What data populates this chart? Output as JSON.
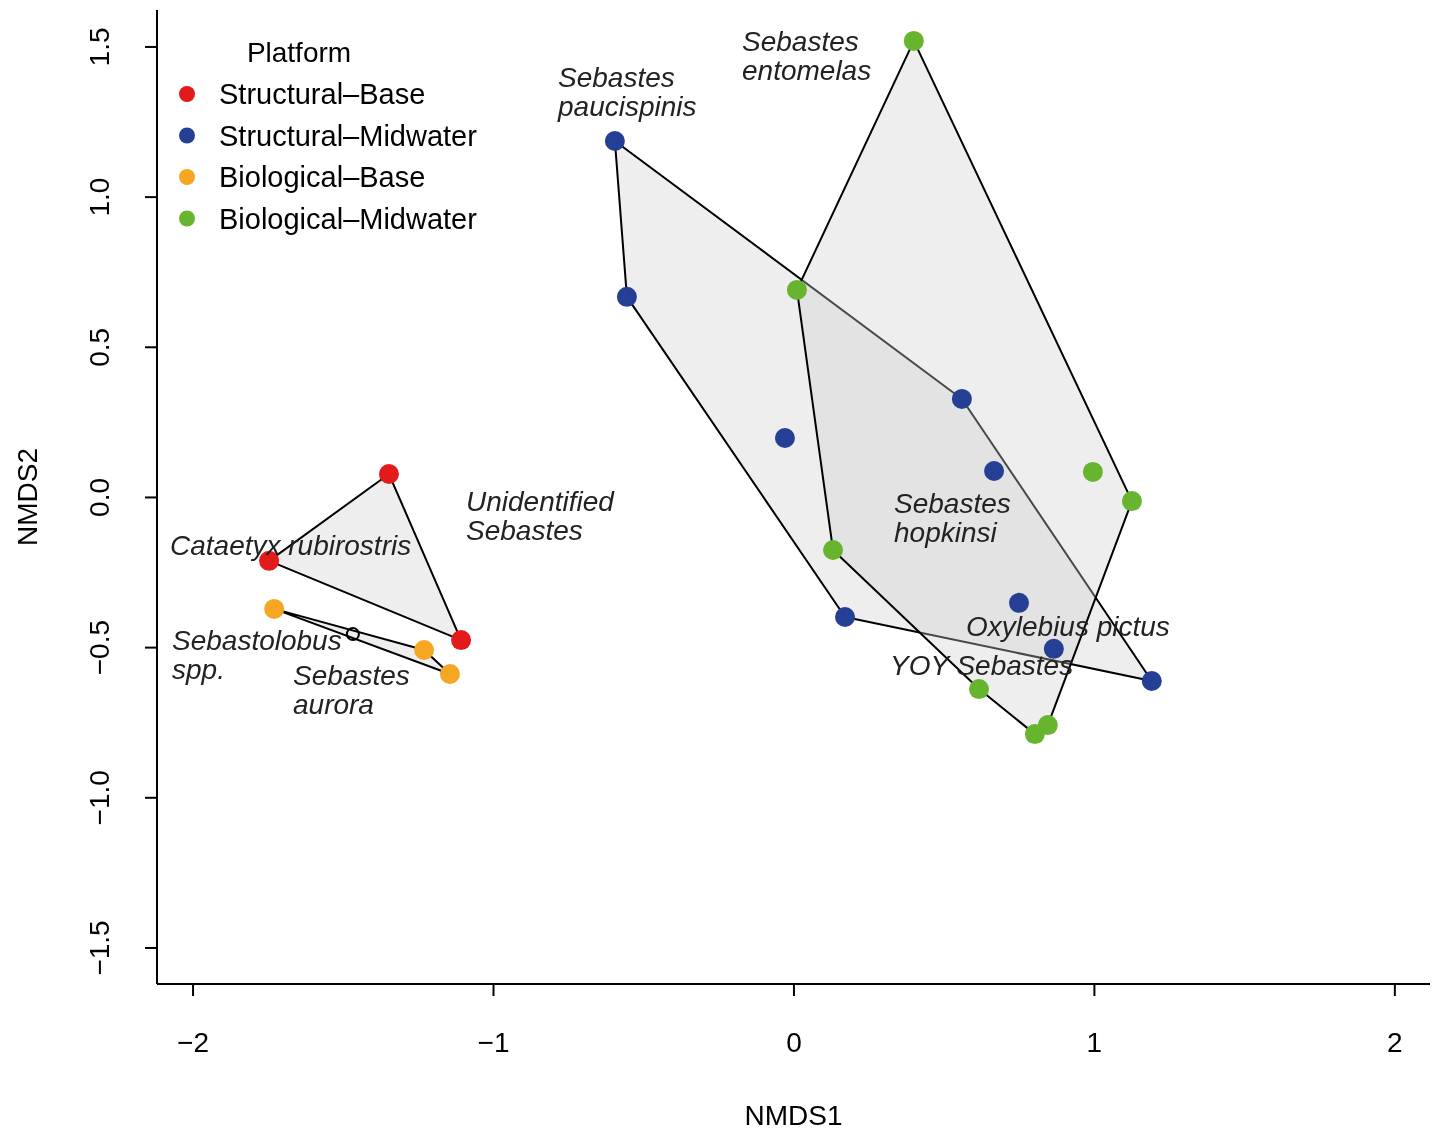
{
  "chart_data": {
    "type": "scatter",
    "xlabel": "NMDS1",
    "ylabel": "NMDS2",
    "legend_title": "Platform",
    "legend": "top left",
    "marker": "circle",
    "grid": false,
    "xlim": [
      -2.12,
      2.117
    ],
    "ylim": [
      -1.62,
      1.623
    ],
    "xticks": [
      {
        "value": -2,
        "label": "−2"
      },
      {
        "value": -1,
        "label": "−1"
      },
      0,
      1,
      2
    ],
    "yticks": [
      {
        "value": -1.5,
        "label": "−1.5"
      },
      {
        "value": -1,
        "label": "−1.0"
      },
      {
        "value": -0.5,
        "label": "−0.5"
      },
      {
        "value": 0,
        "label": "0.0"
      },
      0.5,
      {
        "value": 1,
        "label": "1.0"
      },
      1.5
    ],
    "series": [
      {
        "name": "Structural–Base",
        "color": "#e31a1c",
        "x": [
          -1.348,
          -1.747,
          -1.108
        ],
        "values": [
          0.078,
          -0.211,
          -0.475
        ]
      },
      {
        "name": "Structural–Midwater",
        "color": "#253f94",
        "x": [
          -0.596,
          -0.556,
          -0.03,
          0.559,
          0.666,
          0.749,
          0.865,
          1.191,
          0.17
        ],
        "values": [
          1.187,
          0.668,
          0.198,
          0.328,
          0.088,
          -0.351,
          -0.504,
          -0.611,
          -0.398
        ]
      },
      {
        "name": "Biological–Base",
        "color": "#f5a623",
        "x": [
          -1.73,
          -1.231,
          -1.145
        ],
        "values": [
          -0.371,
          -0.508,
          -0.588
        ]
      },
      {
        "name": "Biological–Midwater",
        "color": "#67b42e",
        "x": [
          0.399,
          0.01,
          0.995,
          1.125,
          0.13,
          0.616,
          0.845,
          0.802
        ],
        "values": [
          1.52,
          0.691,
          0.085,
          -0.012,
          -0.175,
          -0.638,
          -0.758,
          -0.788
        ]
      },
      {
        "color": "#000000",
        "x": [
          -1.468
        ],
        "values": [
          -0.455
        ]
      }
    ],
    "annotations": [
      "Sebastes\nentomelas",
      "Sebastes\npaucispinis",
      "Unidentified\nSebastes",
      "Cataetyx rubirostris",
      "Sebastolobus\nspp.",
      "Sebastes\naurora",
      "Sebastes\nhopkinsi",
      "Oxylebius pictus",
      "YOY Sebastes"
    ]
  }
}
